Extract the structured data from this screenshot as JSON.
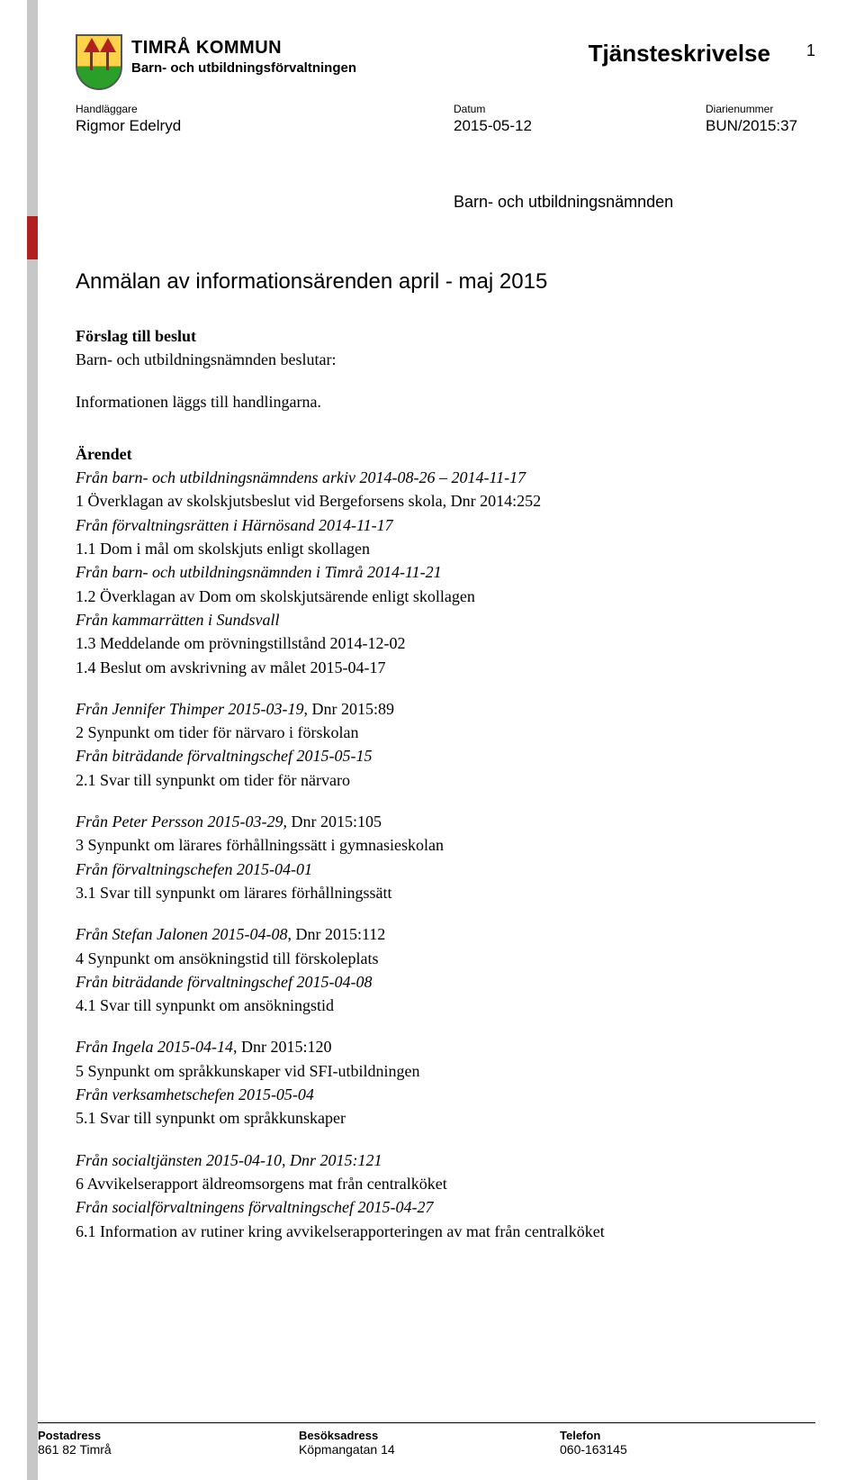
{
  "colors": {
    "text": "#000000",
    "background": "#ffffff",
    "sidebar_grey": "#c7c7c7",
    "sidebar_accent": "#b02020",
    "crest_top": "#ffd24a",
    "crest_bottom": "#2aa02a",
    "crest_tree_trunk": "#6b3a1a",
    "crest_tree_canopy": "#b02020"
  },
  "page_number": "1",
  "org": {
    "name": "TIMRÅ KOMMUN",
    "dept": "Barn- och utbildningsförvaltningen"
  },
  "doc_type": "Tjänsteskrivelse",
  "meta": {
    "handler_label": "Handläggare",
    "handler_value": "Rigmor Edelryd",
    "date_label": "Datum",
    "date_value": "2015-05-12",
    "diary_label": "Diarienummer",
    "diary_value": "BUN/2015:37"
  },
  "addressee": "Barn- och utbildningsnämnden",
  "title": "Anmälan av informationsärenden april - maj 2015",
  "proposal": {
    "head": "Förslag till beslut",
    "line1": "Barn- och utbildningsnämnden beslutar:",
    "line2": "Informationen läggs till handlingarna."
  },
  "matter": {
    "head": "Ärendet",
    "groups": [
      {
        "lines": [
          {
            "text": "Från barn- och utbildningsnämndens arkiv 2014-08-26 – 2014-11-17",
            "italic": true
          },
          {
            "text": "1 Överklagan av skolskjutsbeslut vid Bergeforsens skola, Dnr 2014:252",
            "italic": false
          },
          {
            "text": "Från förvaltningsrätten i Härnösand 2014-11-17",
            "italic": true
          },
          {
            "text": "1.1 Dom i mål om skolskjuts enligt skollagen",
            "italic": false
          },
          {
            "text": "Från barn- och utbildningsnämnden i Timrå 2014-11-21",
            "italic": true
          },
          {
            "text": "1.2 Överklagan av Dom om skolskjutsärende enligt skollagen",
            "italic": false
          },
          {
            "text": "Från kammarrätten i Sundsvall",
            "italic": true
          },
          {
            "text": "1.3 Meddelande om prövningstillstånd 2014-12-02",
            "italic": false
          },
          {
            "text": "1.4 Beslut om avskrivning av målet 2015-04-17",
            "italic": false
          }
        ]
      },
      {
        "lines": [
          {
            "text_prefix": "Från Jennifer Thimper 2015-03-19",
            "text_suffix": ", Dnr 2015:89",
            "mixed": true
          },
          {
            "text": "2 Synpunkt om tider för närvaro i förskolan",
            "italic": false
          },
          {
            "text": "Från biträdande förvaltningschef 2015-05-15",
            "italic": true
          },
          {
            "text": "2.1 Svar till synpunkt om tider för närvaro",
            "italic": false
          }
        ]
      },
      {
        "lines": [
          {
            "text_prefix": "Från Peter Persson 2015-03-29",
            "text_suffix": ", Dnr 2015:105",
            "mixed": true
          },
          {
            "text": "3 Synpunkt om lärares förhållningssätt i gymnasieskolan",
            "italic": false
          },
          {
            "text": "Från förvaltningschefen 2015-04-01",
            "italic": true
          },
          {
            "text": "3.1 Svar till synpunkt om lärares förhållningssätt",
            "italic": false
          }
        ]
      },
      {
        "lines": [
          {
            "text_prefix": "Från Stefan Jalonen 2015-04-08",
            "text_suffix": ", Dnr 2015:112",
            "mixed": true
          },
          {
            "text": "4 Synpunkt om ansökningstid till förskoleplats",
            "italic": false
          },
          {
            "text": "Från biträdande förvaltningschef 2015-04-08",
            "italic": true
          },
          {
            "text": "4.1 Svar till synpunkt om ansökningstid",
            "italic": false
          }
        ]
      },
      {
        "lines": [
          {
            "text_prefix": "Från Ingela 2015-04-14",
            "text_suffix": ", Dnr 2015:120",
            "mixed": true
          },
          {
            "text": "5 Synpunkt om språkkunskaper vid SFI-utbildningen",
            "italic": false
          },
          {
            "text": "Från verksamhetschefen 2015-05-04",
            "italic": true
          },
          {
            "text": "5.1 Svar till synpunkt om språkkunskaper",
            "italic": false
          }
        ]
      },
      {
        "lines": [
          {
            "text": "Från socialtjänsten 2015-04-10, Dnr 2015:121",
            "italic": true
          },
          {
            "text": "6 Avvikelserapport äldreomsorgens mat från centralköket",
            "italic": false
          },
          {
            "text": "Från socialförvaltningens förvaltningschef 2015-04-27",
            "italic": true
          },
          {
            "text": "6.1 Information av rutiner kring avvikelserapporteringen av mat från centralköket",
            "italic": false
          }
        ]
      }
    ]
  },
  "footer": {
    "postal_label": "Postadress",
    "postal_value": "861 82 Timrå",
    "visit_label": "Besöksadress",
    "visit_value": "Köpmangatan 14",
    "phone_label": "Telefon",
    "phone_value": "060-163145"
  }
}
